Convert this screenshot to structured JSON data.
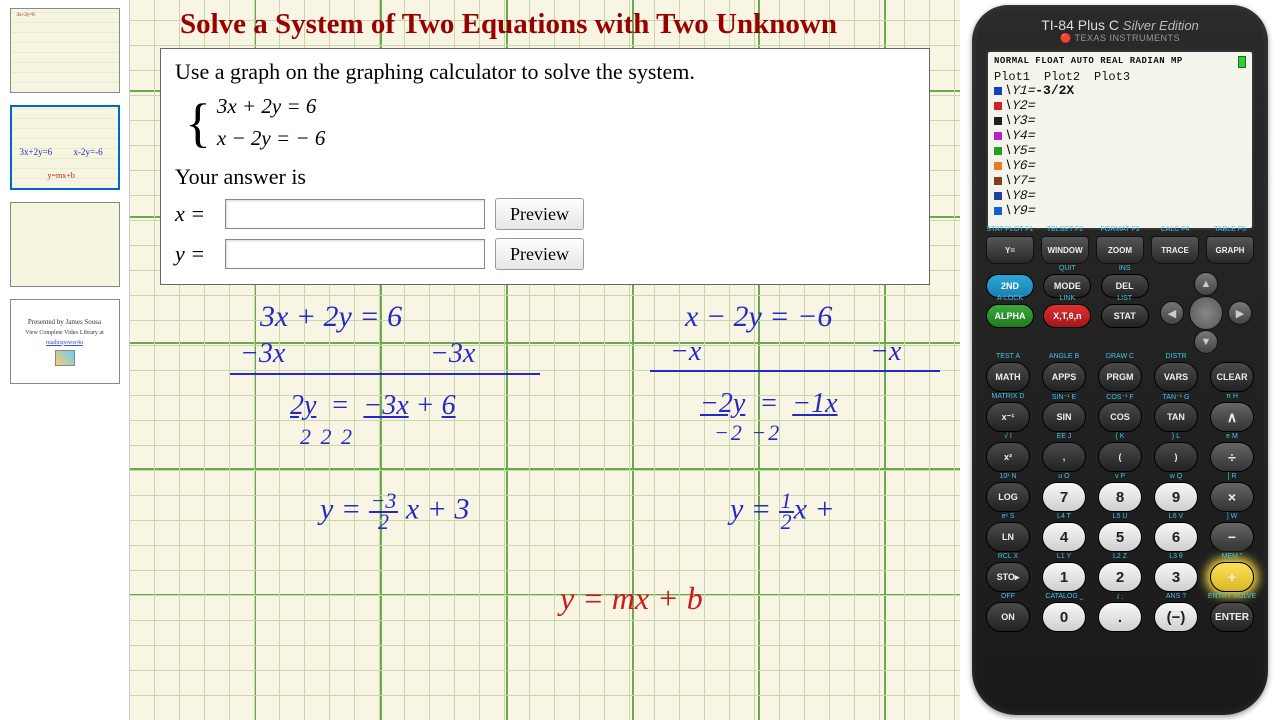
{
  "title": "Solve a System of Two Equations with Two Unknown",
  "problem": {
    "instruction": "Use a graph on the graphing calculator to solve the system.",
    "eq1": "3x + 2y = 6",
    "eq2": "x − 2y = − 6",
    "answer_label": "Your answer is",
    "x_label": "x =",
    "y_label": "y =",
    "x_value": "",
    "y_value": "",
    "preview_label": "Preview"
  },
  "handwriting": {
    "left": {
      "l1": "3x + 2y = 6",
      "l2a": "−3x",
      "l2b": "−3x",
      "l3": "2y   =  −3x + 6",
      "l3d": "2            2       2",
      "l4": "y = -3⁄2 x + 3"
    },
    "right": {
      "l1": "x − 2y = −6",
      "l2a": "−x",
      "l2b": "−x",
      "l3": "−2y  =  −1x",
      "l3d": "−2       −2",
      "l4": "y = ½x +"
    },
    "bottom": "y = mx + b"
  },
  "thumbs": {
    "t1_label1": "3x+2y=6",
    "t1_label2": "x-2y=-6",
    "t2_mini": "y=mx+b",
    "t3_l1": "Presented by James Sousa",
    "t3_l2": "View Complete Video Library at",
    "t3_l3": "mathispower4u"
  },
  "calculator": {
    "model": "TI-84 Plus C",
    "edition": "Silver Edition",
    "brand": "TEXAS INSTRUMENTS",
    "status_line": "NORMAL FLOAT AUTO REAL RADIAN MP",
    "plots": [
      "Plot1",
      "Plot2",
      "Plot3"
    ],
    "y_entries": [
      {
        "color": "#1040c0",
        "label": "\\Y1=",
        "value": "-3/2X"
      },
      {
        "color": "#d02020",
        "label": "\\Y2=",
        "value": ""
      },
      {
        "color": "#202020",
        "label": "\\Y3=",
        "value": ""
      },
      {
        "color": "#c020c0",
        "label": "\\Y4=",
        "value": ""
      },
      {
        "color": "#20a020",
        "label": "\\Y5=",
        "value": ""
      },
      {
        "color": "#e08020",
        "label": "\\Y6=",
        "value": ""
      },
      {
        "color": "#804020",
        "label": "\\Y7=",
        "value": ""
      },
      {
        "color": "#2040a0",
        "label": "\\Y8=",
        "value": ""
      },
      {
        "color": "#1060d0",
        "label": "\\Y9=",
        "value": ""
      }
    ],
    "fkeys": [
      {
        "over": "STAT PLOT F1",
        "label": "Y="
      },
      {
        "over": "TBLSET F2",
        "label": "WINDOW"
      },
      {
        "over": "FORMAT F3",
        "label": "ZOOM"
      },
      {
        "over": "CALC F4",
        "label": "TRACE"
      },
      {
        "over": "TABLE F5",
        "label": "GRAPH"
      }
    ],
    "mid_left": [
      {
        "cls": "k-2nd",
        "label": "2ND",
        "over": ""
      },
      {
        "cls": "k-alpha",
        "label": "ALPHA",
        "over": "A-LOCK"
      }
    ],
    "mid_col2": [
      {
        "cls": "k-dark",
        "label": "MODE",
        "over": "QUIT"
      },
      {
        "cls": "k-xton",
        "label": "X,T,θ,n",
        "over": "LINK"
      }
    ],
    "mid_col3": [
      {
        "cls": "k-dark",
        "label": "DEL",
        "over": "INS"
      },
      {
        "cls": "k-dark",
        "label": "STAT",
        "over": "LIST"
      }
    ],
    "rows": [
      [
        {
          "label": "MATH",
          "over": "TEST A",
          "cls": ""
        },
        {
          "label": "APPS",
          "over": "ANGLE B",
          "cls": ""
        },
        {
          "label": "PRGM",
          "over": "DRAW C",
          "cls": ""
        },
        {
          "label": "VARS",
          "over": "DISTR",
          "cls": ""
        },
        {
          "label": "CLEAR",
          "over": "",
          "cls": ""
        }
      ],
      [
        {
          "label": "x⁻¹",
          "over": "MATRIX D",
          "cls": ""
        },
        {
          "label": "SIN",
          "over": "SIN⁻¹ E",
          "cls": ""
        },
        {
          "label": "COS",
          "over": "COS⁻¹ F",
          "cls": ""
        },
        {
          "label": "TAN",
          "over": "TAN⁻¹ G",
          "cls": ""
        },
        {
          "label": "∧",
          "over": "π H",
          "cls": "op"
        }
      ],
      [
        {
          "label": "x²",
          "over": "√ I",
          "cls": ""
        },
        {
          "label": ",",
          "over": "EE J",
          "cls": ""
        },
        {
          "label": "(",
          "over": "{ K",
          "cls": ""
        },
        {
          "label": ")",
          "over": "} L",
          "cls": ""
        },
        {
          "label": "÷",
          "over": "e M",
          "cls": "op"
        }
      ],
      [
        {
          "label": "LOG",
          "over": "10ˣ N",
          "cls": ""
        },
        {
          "label": "7",
          "over": "u O",
          "cls": "white"
        },
        {
          "label": "8",
          "over": "v P",
          "cls": "white"
        },
        {
          "label": "9",
          "over": "w Q",
          "cls": "white"
        },
        {
          "label": "×",
          "over": "[ R",
          "cls": "op"
        }
      ],
      [
        {
          "label": "LN",
          "over": "eˣ S",
          "cls": ""
        },
        {
          "label": "4",
          "over": "L4 T",
          "cls": "white"
        },
        {
          "label": "5",
          "over": "L5 U",
          "cls": "white"
        },
        {
          "label": "6",
          "over": "L6 V",
          "cls": "white"
        },
        {
          "label": "−",
          "over": "] W",
          "cls": "op"
        }
      ],
      [
        {
          "label": "STO▸",
          "over": "RCL X",
          "cls": ""
        },
        {
          "label": "1",
          "over": "L1 Y",
          "cls": "white"
        },
        {
          "label": "2",
          "over": "L2 Z",
          "cls": "white"
        },
        {
          "label": "3",
          "over": "L3 θ",
          "cls": "white"
        },
        {
          "label": "+",
          "over": "MEM \"",
          "cls": "op highlight"
        }
      ],
      [
        {
          "label": "ON",
          "over": "OFF",
          "cls": ""
        },
        {
          "label": "0",
          "over": "CATALOG ⎵",
          "cls": "white"
        },
        {
          "label": ".",
          "over": "ⅈ :",
          "cls": "white"
        },
        {
          "label": "(−)",
          "over": "ANS ?",
          "cls": "white"
        },
        {
          "label": "ENTER",
          "over": "ENTRY SOLVE",
          "cls": "enter"
        }
      ]
    ]
  }
}
